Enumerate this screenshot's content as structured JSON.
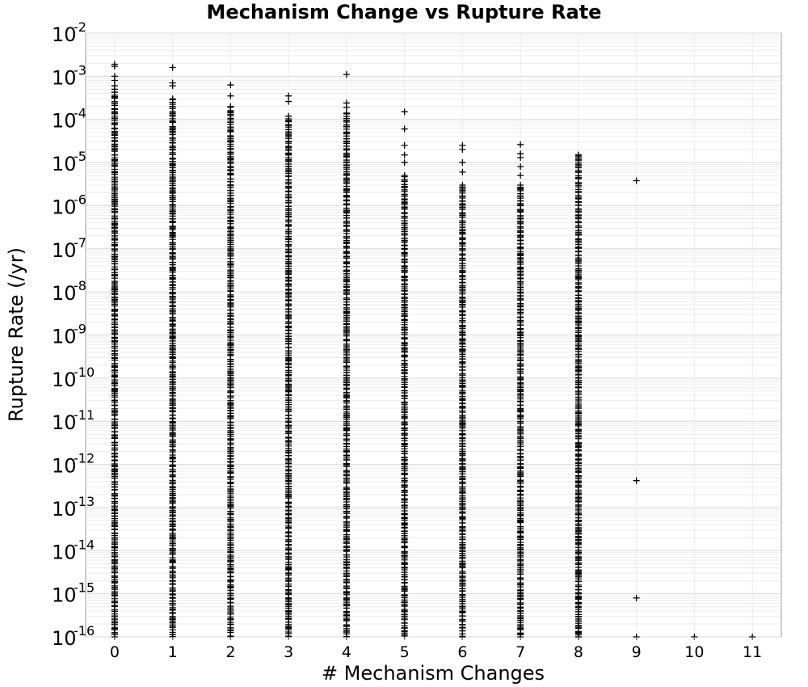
{
  "chart_data": {
    "type": "scatter",
    "title": "Mechanism Change vs Rupture Rate",
    "xlabel": "# Mechanism Changes",
    "ylabel": "Rupture Rate (/yr)",
    "xlim": [
      -0.5,
      11.5
    ],
    "ylim": [
      1e-16,
      0.01
    ],
    "x_scale": "linear",
    "y_scale": "log",
    "x_ticks": [
      0,
      1,
      2,
      3,
      4,
      5,
      6,
      7,
      8,
      9,
      10,
      11
    ],
    "x_tick_labels": [
      "0",
      "1",
      "2",
      "3",
      "4",
      "5",
      "6",
      "7",
      "8",
      "9",
      "10",
      "11"
    ],
    "y_ticks": [
      1e-16,
      1e-15,
      1e-14,
      1e-13,
      1e-12,
      1e-11,
      1e-10,
      1e-09,
      1e-08,
      1e-07,
      1e-06,
      1e-05,
      0.0001,
      0.001,
      0.01
    ],
    "y_tick_base": "10",
    "y_tick_exponents": [
      "-16",
      "-15",
      "-14",
      "-13",
      "-12",
      "-11",
      "-10",
      "-9",
      "-8",
      "-7",
      "-6",
      "-5",
      "-4",
      "-3",
      "-2"
    ],
    "grid": true,
    "legend": "none",
    "marker": "+",
    "marker_color": "#000000",
    "series": [
      {
        "columns": [
          {
            "x": 0,
            "y_min": 1e-16,
            "y_max": 0.0005,
            "max_point": 0.0019,
            "extra_points": [
              0.0017,
              0.001,
              0.0008,
              0.0006
            ]
          },
          {
            "x": 1,
            "y_min": 1e-16,
            "y_max": 0.0003,
            "max_point": 0.0016,
            "extra_points": [
              0.0007,
              0.0006
            ]
          },
          {
            "x": 2,
            "y_min": 1e-16,
            "y_max": 0.0002,
            "max_point": 0.00063,
            "extra_points": [
              0.00035
            ]
          },
          {
            "x": 3,
            "y_min": 1e-16,
            "y_max": 0.00012,
            "max_point": 0.00035,
            "extra_points": [
              0.00026
            ]
          },
          {
            "x": 4,
            "y_min": 1e-16,
            "y_max": 0.00014,
            "max_point": 0.0011,
            "extra_points": [
              0.00024,
              0.00019
            ]
          },
          {
            "x": 5,
            "y_min": 1e-16,
            "y_max": 5e-06,
            "max_point": 0.00015,
            "extra_points": [
              6e-05,
              2.5e-05,
              1.5e-05,
              1e-05
            ]
          },
          {
            "x": 6,
            "y_min": 1e-16,
            "y_max": 3e-06,
            "max_point": 2.5e-05,
            "extra_points": [
              2e-05,
              1e-05,
              6e-06
            ]
          },
          {
            "x": 7,
            "y_min": 1e-16,
            "y_max": 3e-06,
            "max_point": 2.6e-05,
            "extra_points": [
              1.6e-05,
              1.3e-05,
              8e-06,
              5e-06
            ]
          },
          {
            "x": 8,
            "y_min": 1e-16,
            "y_max": 1.5e-05,
            "max_point": 1.5e-05,
            "extra_points": [
              2.3e-08,
              6e-09,
              4e-09,
              2e-09,
              1.5e-09,
              1e-09,
              7e-10,
              5e-10,
              1.8e-10,
              1.5e-10,
              1e-10,
              6e-11,
              2e-11,
              1.5e-11,
              1e-11,
              3e-12,
              2.5e-12,
              8e-13,
              4e-13,
              3e-13,
              2e-13,
              1.5e-13,
              7e-14,
              5e-14,
              3e-14,
              2e-14,
              6e-15,
              3e-15,
              1e-15,
              8e-16,
              6e-16,
              1.8e-16,
              1.2e-16,
              1e-16
            ]
          },
          {
            "x": 9,
            "y_min": null,
            "y_max": null,
            "max_point": 3.8e-06,
            "extra_points": [
              4.2e-13,
              8e-16,
              1e-16
            ]
          },
          {
            "x": 10,
            "y_min": null,
            "y_max": null,
            "max_point": 1e-16,
            "extra_points": []
          },
          {
            "x": 11,
            "y_min": null,
            "y_max": null,
            "max_point": 1e-16,
            "extra_points": []
          }
        ]
      }
    ]
  }
}
